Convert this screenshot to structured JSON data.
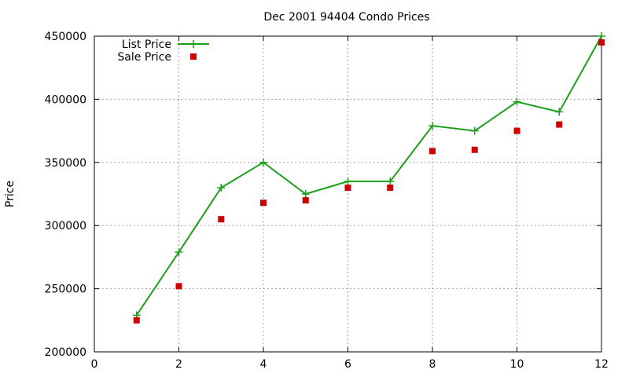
{
  "chart_data": {
    "type": "line",
    "title": "Dec 2001 94404 Condo Prices",
    "xlabel": "",
    "ylabel": "Price",
    "xlim": [
      0,
      12
    ],
    "ylim": [
      200000,
      450000
    ],
    "xticks": [
      0,
      2,
      4,
      6,
      8,
      10,
      12
    ],
    "yticks": [
      200000,
      250000,
      300000,
      350000,
      400000,
      450000
    ],
    "grid": true,
    "legend_position": "top-left",
    "series": [
      {
        "name": "List Price",
        "style": "line+cross",
        "color": "#1ba01b",
        "x": [
          1,
          2,
          3,
          4,
          5,
          6,
          7,
          8,
          9,
          10,
          11,
          12
        ],
        "values": [
          229000,
          279000,
          330000,
          350000,
          325000,
          335000,
          335000,
          379000,
          375000,
          398000,
          390000,
          450000
        ]
      },
      {
        "name": "Sale Price",
        "style": "square-points",
        "color": "#cc0000",
        "x": [
          1,
          2,
          3,
          4,
          5,
          6,
          7,
          8,
          9,
          10,
          11,
          12
        ],
        "values": [
          225000,
          252000,
          305000,
          318000,
          320000,
          330000,
          330000,
          359000,
          360000,
          375000,
          380000,
          445000
        ]
      }
    ]
  }
}
